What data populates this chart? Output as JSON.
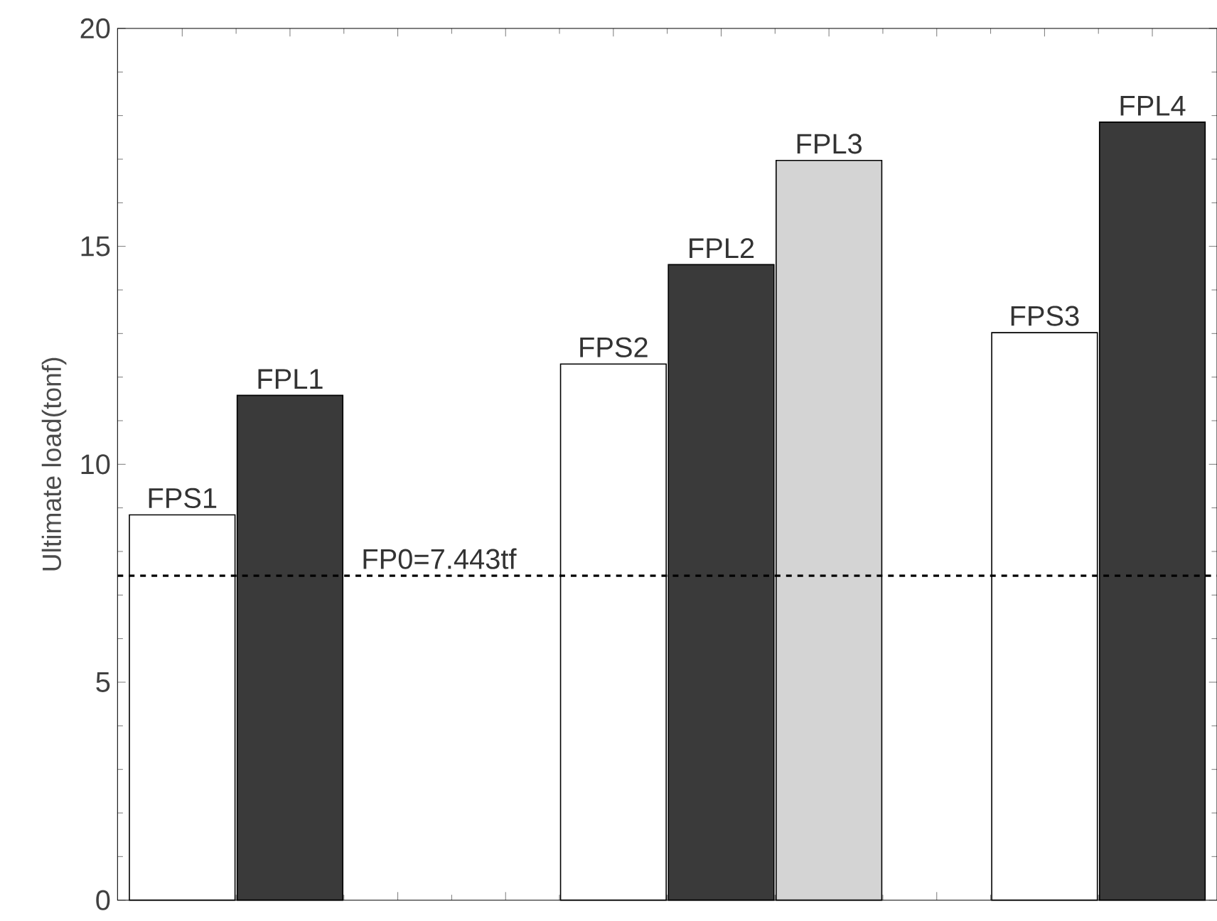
{
  "chart_data": {
    "type": "bar",
    "ylabel": "Ultimate load(tonf)",
    "categories": [
      "FPS1",
      "FPL1",
      null,
      null,
      "FPS2",
      "FPL2",
      "FPL3",
      null,
      "FPS3",
      "FPL4"
    ],
    "values": [
      8.84,
      11.58,
      null,
      null,
      12.3,
      14.58,
      16.97,
      null,
      13.02,
      17.85
    ],
    "colors": [
      "#ffffff",
      "#3a3a3a",
      "#ffffff",
      "#ffffff",
      "#ffffff",
      "#3a3a3a",
      "#d4d4d4",
      "#ffffff",
      "#ffffff",
      "#3a3a3a"
    ],
    "ylim": [
      0,
      20
    ],
    "yticks": [
      0,
      5,
      10,
      15,
      20
    ],
    "ref_lines": [
      {
        "axis": "y",
        "value": 7.443,
        "label": "FP0=7.443tf",
        "line_style": "dashed"
      }
    ],
    "line_style": "solid"
  }
}
